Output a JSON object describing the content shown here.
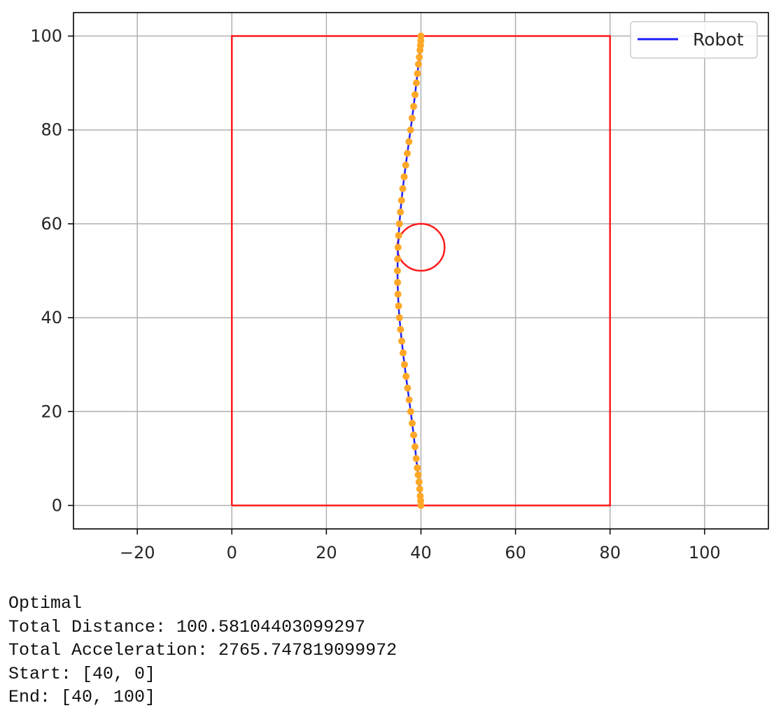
{
  "chart_data": {
    "type": "line",
    "title": "",
    "xlabel": "",
    "ylabel": "",
    "xlim": [
      -33.5,
      113.5
    ],
    "ylim": [
      -5,
      105
    ],
    "x_ticks": [
      -20,
      0,
      20,
      40,
      60,
      80,
      100
    ],
    "y_ticks": [
      0,
      20,
      40,
      60,
      80,
      100
    ],
    "x_tick_labels": [
      "−20",
      "0",
      "20",
      "40",
      "60",
      "80",
      "100"
    ],
    "y_tick_labels": [
      "0",
      "20",
      "40",
      "60",
      "80",
      "100"
    ],
    "grid": true,
    "legend": {
      "position": "top-right",
      "entries": [
        {
          "label": "Robot",
          "color": "#1f1fff"
        }
      ]
    },
    "boundary": {
      "x": [
        0,
        80,
        80,
        0,
        0
      ],
      "y": [
        0,
        0,
        100,
        100,
        0
      ],
      "color": "#ff1a1a"
    },
    "obstacle": {
      "center": [
        40,
        55
      ],
      "radius": 5,
      "color": "#ff1a1a"
    },
    "series": [
      {
        "name": "Robot",
        "color": "#1f1fff",
        "marker_color": "#ffa726",
        "x": [
          40,
          39.93,
          39.85,
          39.74,
          39.6,
          39.43,
          39.23,
          39,
          38.74,
          38.46,
          38.15,
          37.83,
          37.5,
          37.17,
          36.84,
          36.52,
          36.22,
          35.94,
          35.68,
          35.45,
          35.27,
          35.14,
          35.06,
          35.04,
          35.08,
          35.16,
          35.28,
          35.45,
          35.65,
          35.89,
          36.16,
          36.46,
          36.78,
          37.12,
          37.46,
          37.8,
          38.13,
          38.45,
          38.75,
          39.03,
          39.27,
          39.48,
          39.66,
          39.8,
          39.9,
          39.97,
          40
        ],
        "y": [
          0,
          1,
          2,
          3.5,
          5,
          6.5,
          8,
          10,
          12.5,
          15,
          17.5,
          20,
          22.5,
          25,
          27.5,
          30,
          32.5,
          35,
          37.5,
          40,
          42.5,
          45,
          47.5,
          50,
          52.5,
          55,
          57.5,
          60,
          62.5,
          65,
          67.5,
          70,
          72.5,
          75,
          77.5,
          80,
          82.5,
          85,
          87.5,
          90,
          92,
          94,
          95.5,
          97,
          98,
          99,
          100
        ]
      }
    ]
  },
  "output": {
    "lines": [
      "Optimal",
      "Total Distance: 100.58104403099297",
      "Total Acceleration: 2765.747819099972",
      "Start: [40, 0]",
      "End: [40, 100]"
    ]
  }
}
